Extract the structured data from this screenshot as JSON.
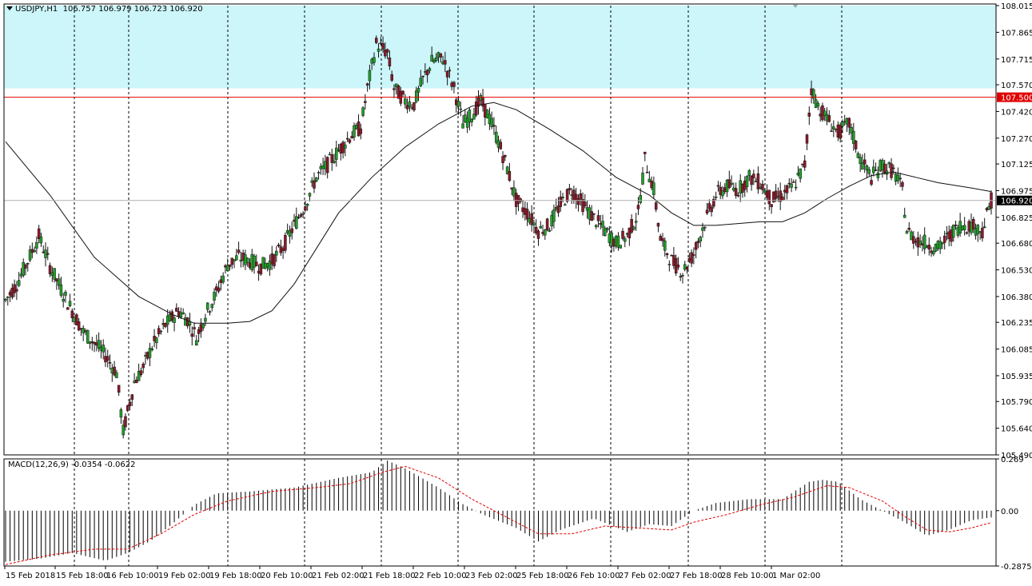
{
  "header": {
    "symbol": "USDJPY,H1",
    "ohlc": "106.757 106.979 106.723 106.920"
  },
  "macd_header": "MACD(12,26,9) -0.0354 -0.0622",
  "colors": {
    "zone": "#ccf6fa",
    "level_line": "#e00000",
    "price_label_bg": "#e00000",
    "bull_body": "#22a02a",
    "bear_body": "#8b1a2a",
    "wick": "#111111",
    "ma": "#111111",
    "macd_signal": "#e00000",
    "grid": "#000000"
  },
  "chart_data": [
    {
      "type": "candlestick",
      "symbol": "USDJPY",
      "timeframe": "H1",
      "ylim": [
        105.49,
        108.015
      ],
      "y_ticks": [
        "108.015",
        "107.865",
        "107.715",
        "107.570",
        "107.420",
        "107.270",
        "107.125",
        "106.975",
        "106.825",
        "106.680",
        "106.530",
        "106.380",
        "106.235",
        "106.085",
        "105.935",
        "105.790",
        "105.640",
        "105.490"
      ],
      "x_labels": [
        "15 Feb 2018",
        "15 Feb 18:00",
        "16 Feb 10:00",
        "19 Feb 02:00",
        "19 Feb 18:00",
        "20 Feb 10:00",
        "21 Feb 02:00",
        "21 Feb 18:00",
        "22 Feb 10:00",
        "23 Feb 02:00",
        "25 Feb 18:00",
        "26 Feb 10:00",
        "27 Feb 02:00",
        "27 Feb 18:00",
        "28 Feb 10:00",
        "1 Mar 02:00"
      ],
      "resistance_zone": [
        107.55,
        108.015
      ],
      "horizontal_line": {
        "value": 107.5,
        "label": "107.500"
      },
      "current_price": {
        "value": 106.92,
        "label": "106.920"
      },
      "series_close_points": [
        [
          0,
          106.36
        ],
        [
          5,
          106.45
        ],
        [
          10,
          106.58
        ],
        [
          15,
          106.72
        ],
        [
          20,
          106.55
        ],
        [
          25,
          106.42
        ],
        [
          30,
          106.3
        ],
        [
          35,
          106.18
        ],
        [
          40,
          106.12
        ],
        [
          45,
          106.05
        ],
        [
          50,
          105.95
        ],
        [
          53,
          105.62
        ],
        [
          58,
          105.9
        ],
        [
          62,
          105.98
        ],
        [
          66,
          106.1
        ],
        [
          72,
          106.22
        ],
        [
          78,
          106.3
        ],
        [
          82,
          106.25
        ],
        [
          86,
          106.15
        ],
        [
          90,
          106.28
        ],
        [
          95,
          106.4
        ],
        [
          100,
          106.56
        ],
        [
          105,
          106.6
        ],
        [
          110,
          106.58
        ],
        [
          115,
          106.55
        ],
        [
          120,
          106.58
        ],
        [
          125,
          106.66
        ],
        [
          130,
          106.78
        ],
        [
          135,
          106.9
        ],
        [
          140,
          107.05
        ],
        [
          145,
          107.12
        ],
        [
          150,
          107.2
        ],
        [
          155,
          107.28
        ],
        [
          160,
          107.33
        ],
        [
          163,
          107.55
        ],
        [
          167,
          107.8
        ],
        [
          172,
          107.75
        ],
        [
          175,
          107.55
        ],
        [
          180,
          107.48
        ],
        [
          184,
          107.46
        ],
        [
          188,
          107.6
        ],
        [
          192,
          107.7
        ],
        [
          197,
          107.72
        ],
        [
          202,
          107.55
        ],
        [
          206,
          107.35
        ],
        [
          210,
          107.4
        ],
        [
          214,
          107.48
        ],
        [
          218,
          107.38
        ],
        [
          222,
          107.25
        ],
        [
          226,
          107.1
        ],
        [
          230,
          106.92
        ],
        [
          235,
          106.85
        ],
        [
          240,
          106.75
        ],
        [
          245,
          106.78
        ],
        [
          250,
          106.9
        ],
        [
          255,
          106.98
        ],
        [
          260,
          106.9
        ],
        [
          265,
          106.82
        ],
        [
          270,
          106.75
        ],
        [
          275,
          106.68
        ],
        [
          280,
          106.72
        ],
        [
          285,
          106.85
        ],
        [
          288,
          107.15
        ],
        [
          292,
          106.98
        ],
        [
          295,
          106.7
        ],
        [
          300,
          106.58
        ],
        [
          305,
          106.52
        ],
        [
          310,
          106.62
        ],
        [
          315,
          106.8
        ],
        [
          320,
          106.95
        ],
        [
          325,
          107.0
        ],
        [
          330,
          106.98
        ],
        [
          335,
          107.05
        ],
        [
          340,
          107.02
        ],
        [
          345,
          106.92
        ],
        [
          350,
          106.95
        ],
        [
          355,
          107.0
        ],
        [
          360,
          107.12
        ],
        [
          363,
          107.55
        ],
        [
          366,
          107.45
        ],
        [
          370,
          107.38
        ],
        [
          375,
          107.3
        ],
        [
          380,
          107.35
        ],
        [
          385,
          107.15
        ],
        [
          390,
          107.05
        ],
        [
          395,
          107.12
        ],
        [
          400,
          107.08
        ],
        [
          404,
          106.98
        ],
        [
          406,
          106.75
        ],
        [
          410,
          106.7
        ],
        [
          415,
          106.68
        ],
        [
          420,
          106.65
        ],
        [
          425,
          106.72
        ],
        [
          430,
          106.78
        ],
        [
          435,
          106.78
        ],
        [
          440,
          106.75
        ],
        [
          444,
          106.92
        ]
      ],
      "moving_average_points": [
        [
          0,
          107.25
        ],
        [
          20,
          106.95
        ],
        [
          40,
          106.6
        ],
        [
          60,
          106.38
        ],
        [
          75,
          106.28
        ],
        [
          85,
          106.23
        ],
        [
          100,
          106.23
        ],
        [
          110,
          106.24
        ],
        [
          120,
          106.3
        ],
        [
          130,
          106.45
        ],
        [
          140,
          106.65
        ],
        [
          150,
          106.85
        ],
        [
          165,
          107.05
        ],
        [
          180,
          107.22
        ],
        [
          195,
          107.35
        ],
        [
          210,
          107.45
        ],
        [
          220,
          107.47
        ],
        [
          230,
          107.43
        ],
        [
          245,
          107.32
        ],
        [
          260,
          107.2
        ],
        [
          275,
          107.05
        ],
        [
          290,
          106.95
        ],
        [
          300,
          106.85
        ],
        [
          310,
          106.78
        ],
        [
          320,
          106.78
        ],
        [
          340,
          106.8
        ],
        [
          350,
          106.8
        ],
        [
          360,
          106.85
        ],
        [
          370,
          106.93
        ],
        [
          380,
          107.0
        ],
        [
          390,
          107.06
        ],
        [
          400,
          107.08
        ],
        [
          410,
          107.05
        ],
        [
          420,
          107.02
        ],
        [
          435,
          106.99
        ],
        [
          444,
          106.97
        ]
      ]
    },
    {
      "type": "bar",
      "name": "MACD(12,26,9)",
      "values_text": "-0.0354 -0.0622",
      "ylim": [
        -0.2875,
        0.269
      ],
      "y_ticks": [
        "0.269",
        "0.00",
        "-0.2875"
      ],
      "histogram_points": [
        [
          0,
          -0.265
        ],
        [
          15,
          -0.25
        ],
        [
          30,
          -0.22
        ],
        [
          45,
          -0.26
        ],
        [
          55,
          -0.22
        ],
        [
          65,
          -0.16
        ],
        [
          75,
          -0.07
        ],
        [
          80,
          -0.02
        ],
        [
          85,
          0.03
        ],
        [
          95,
          0.09
        ],
        [
          110,
          0.1
        ],
        [
          130,
          0.12
        ],
        [
          150,
          0.17
        ],
        [
          165,
          0.2
        ],
        [
          172,
          0.26
        ],
        [
          180,
          0.22
        ],
        [
          195,
          0.12
        ],
        [
          205,
          0.04
        ],
        [
          215,
          -0.02
        ],
        [
          230,
          -0.09
        ],
        [
          240,
          -0.16
        ],
        [
          250,
          -0.1
        ],
        [
          265,
          -0.04
        ],
        [
          280,
          -0.11
        ],
        [
          290,
          -0.07
        ],
        [
          300,
          -0.08
        ],
        [
          310,
          0.0
        ],
        [
          320,
          0.04
        ],
        [
          335,
          0.06
        ],
        [
          350,
          0.06
        ],
        [
          362,
          0.15
        ],
        [
          368,
          0.16
        ],
        [
          375,
          0.15
        ],
        [
          385,
          0.06
        ],
        [
          395,
          0.0
        ],
        [
          405,
          -0.06
        ],
        [
          415,
          -0.13
        ],
        [
          425,
          -0.1
        ],
        [
          435,
          -0.05
        ],
        [
          444,
          -0.035
        ]
      ],
      "signal_points": [
        [
          0,
          -0.28
        ],
        [
          20,
          -0.23
        ],
        [
          40,
          -0.2
        ],
        [
          55,
          -0.2
        ],
        [
          70,
          -0.12
        ],
        [
          85,
          -0.02
        ],
        [
          100,
          0.05
        ],
        [
          120,
          0.1
        ],
        [
          140,
          0.12
        ],
        [
          155,
          0.14
        ],
        [
          170,
          0.2
        ],
        [
          180,
          0.23
        ],
        [
          195,
          0.17
        ],
        [
          210,
          0.06
        ],
        [
          225,
          -0.03
        ],
        [
          240,
          -0.12
        ],
        [
          255,
          -0.12
        ],
        [
          270,
          -0.08
        ],
        [
          285,
          -0.09
        ],
        [
          300,
          -0.1
        ],
        [
          310,
          -0.06
        ],
        [
          325,
          -0.02
        ],
        [
          340,
          0.03
        ],
        [
          355,
          0.07
        ],
        [
          370,
          0.13
        ],
        [
          380,
          0.12
        ],
        [
          395,
          0.05
        ],
        [
          405,
          -0.03
        ],
        [
          415,
          -0.1
        ],
        [
          425,
          -0.11
        ],
        [
          435,
          -0.09
        ],
        [
          444,
          -0.062
        ]
      ]
    }
  ]
}
